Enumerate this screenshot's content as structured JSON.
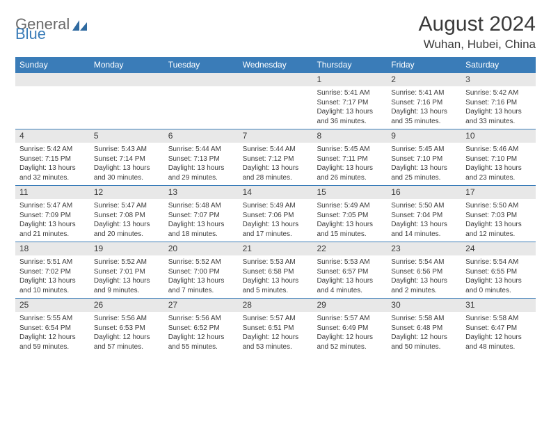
{
  "logo": {
    "general": "General",
    "blue": "Blue"
  },
  "header": {
    "monthTitle": "August 2024",
    "location": "Wuhan, Hubei, China"
  },
  "colors": {
    "headerBar": "#3a7cb8",
    "dayNumBg": "#e8e8e8",
    "text": "#3a3a3a",
    "rowBorder": "#3a7cb8"
  },
  "weekdays": [
    "Sunday",
    "Monday",
    "Tuesday",
    "Wednesday",
    "Thursday",
    "Friday",
    "Saturday"
  ],
  "weeks": [
    [
      {
        "empty": true
      },
      {
        "empty": true
      },
      {
        "empty": true
      },
      {
        "empty": true
      },
      {
        "num": "1",
        "sunrise": "Sunrise: 5:41 AM",
        "sunset": "Sunset: 7:17 PM",
        "daylight": "Daylight: 13 hours and 36 minutes."
      },
      {
        "num": "2",
        "sunrise": "Sunrise: 5:41 AM",
        "sunset": "Sunset: 7:16 PM",
        "daylight": "Daylight: 13 hours and 35 minutes."
      },
      {
        "num": "3",
        "sunrise": "Sunrise: 5:42 AM",
        "sunset": "Sunset: 7:16 PM",
        "daylight": "Daylight: 13 hours and 33 minutes."
      }
    ],
    [
      {
        "num": "4",
        "sunrise": "Sunrise: 5:42 AM",
        "sunset": "Sunset: 7:15 PM",
        "daylight": "Daylight: 13 hours and 32 minutes."
      },
      {
        "num": "5",
        "sunrise": "Sunrise: 5:43 AM",
        "sunset": "Sunset: 7:14 PM",
        "daylight": "Daylight: 13 hours and 30 minutes."
      },
      {
        "num": "6",
        "sunrise": "Sunrise: 5:44 AM",
        "sunset": "Sunset: 7:13 PM",
        "daylight": "Daylight: 13 hours and 29 minutes."
      },
      {
        "num": "7",
        "sunrise": "Sunrise: 5:44 AM",
        "sunset": "Sunset: 7:12 PM",
        "daylight": "Daylight: 13 hours and 28 minutes."
      },
      {
        "num": "8",
        "sunrise": "Sunrise: 5:45 AM",
        "sunset": "Sunset: 7:11 PM",
        "daylight": "Daylight: 13 hours and 26 minutes."
      },
      {
        "num": "9",
        "sunrise": "Sunrise: 5:45 AM",
        "sunset": "Sunset: 7:10 PM",
        "daylight": "Daylight: 13 hours and 25 minutes."
      },
      {
        "num": "10",
        "sunrise": "Sunrise: 5:46 AM",
        "sunset": "Sunset: 7:10 PM",
        "daylight": "Daylight: 13 hours and 23 minutes."
      }
    ],
    [
      {
        "num": "11",
        "sunrise": "Sunrise: 5:47 AM",
        "sunset": "Sunset: 7:09 PM",
        "daylight": "Daylight: 13 hours and 21 minutes."
      },
      {
        "num": "12",
        "sunrise": "Sunrise: 5:47 AM",
        "sunset": "Sunset: 7:08 PM",
        "daylight": "Daylight: 13 hours and 20 minutes."
      },
      {
        "num": "13",
        "sunrise": "Sunrise: 5:48 AM",
        "sunset": "Sunset: 7:07 PM",
        "daylight": "Daylight: 13 hours and 18 minutes."
      },
      {
        "num": "14",
        "sunrise": "Sunrise: 5:49 AM",
        "sunset": "Sunset: 7:06 PM",
        "daylight": "Daylight: 13 hours and 17 minutes."
      },
      {
        "num": "15",
        "sunrise": "Sunrise: 5:49 AM",
        "sunset": "Sunset: 7:05 PM",
        "daylight": "Daylight: 13 hours and 15 minutes."
      },
      {
        "num": "16",
        "sunrise": "Sunrise: 5:50 AM",
        "sunset": "Sunset: 7:04 PM",
        "daylight": "Daylight: 13 hours and 14 minutes."
      },
      {
        "num": "17",
        "sunrise": "Sunrise: 5:50 AM",
        "sunset": "Sunset: 7:03 PM",
        "daylight": "Daylight: 13 hours and 12 minutes."
      }
    ],
    [
      {
        "num": "18",
        "sunrise": "Sunrise: 5:51 AM",
        "sunset": "Sunset: 7:02 PM",
        "daylight": "Daylight: 13 hours and 10 minutes."
      },
      {
        "num": "19",
        "sunrise": "Sunrise: 5:52 AM",
        "sunset": "Sunset: 7:01 PM",
        "daylight": "Daylight: 13 hours and 9 minutes."
      },
      {
        "num": "20",
        "sunrise": "Sunrise: 5:52 AM",
        "sunset": "Sunset: 7:00 PM",
        "daylight": "Daylight: 13 hours and 7 minutes."
      },
      {
        "num": "21",
        "sunrise": "Sunrise: 5:53 AM",
        "sunset": "Sunset: 6:58 PM",
        "daylight": "Daylight: 13 hours and 5 minutes."
      },
      {
        "num": "22",
        "sunrise": "Sunrise: 5:53 AM",
        "sunset": "Sunset: 6:57 PM",
        "daylight": "Daylight: 13 hours and 4 minutes."
      },
      {
        "num": "23",
        "sunrise": "Sunrise: 5:54 AM",
        "sunset": "Sunset: 6:56 PM",
        "daylight": "Daylight: 13 hours and 2 minutes."
      },
      {
        "num": "24",
        "sunrise": "Sunrise: 5:54 AM",
        "sunset": "Sunset: 6:55 PM",
        "daylight": "Daylight: 13 hours and 0 minutes."
      }
    ],
    [
      {
        "num": "25",
        "sunrise": "Sunrise: 5:55 AM",
        "sunset": "Sunset: 6:54 PM",
        "daylight": "Daylight: 12 hours and 59 minutes."
      },
      {
        "num": "26",
        "sunrise": "Sunrise: 5:56 AM",
        "sunset": "Sunset: 6:53 PM",
        "daylight": "Daylight: 12 hours and 57 minutes."
      },
      {
        "num": "27",
        "sunrise": "Sunrise: 5:56 AM",
        "sunset": "Sunset: 6:52 PM",
        "daylight": "Daylight: 12 hours and 55 minutes."
      },
      {
        "num": "28",
        "sunrise": "Sunrise: 5:57 AM",
        "sunset": "Sunset: 6:51 PM",
        "daylight": "Daylight: 12 hours and 53 minutes."
      },
      {
        "num": "29",
        "sunrise": "Sunrise: 5:57 AM",
        "sunset": "Sunset: 6:49 PM",
        "daylight": "Daylight: 12 hours and 52 minutes."
      },
      {
        "num": "30",
        "sunrise": "Sunrise: 5:58 AM",
        "sunset": "Sunset: 6:48 PM",
        "daylight": "Daylight: 12 hours and 50 minutes."
      },
      {
        "num": "31",
        "sunrise": "Sunrise: 5:58 AM",
        "sunset": "Sunset: 6:47 PM",
        "daylight": "Daylight: 12 hours and 48 minutes."
      }
    ]
  ]
}
